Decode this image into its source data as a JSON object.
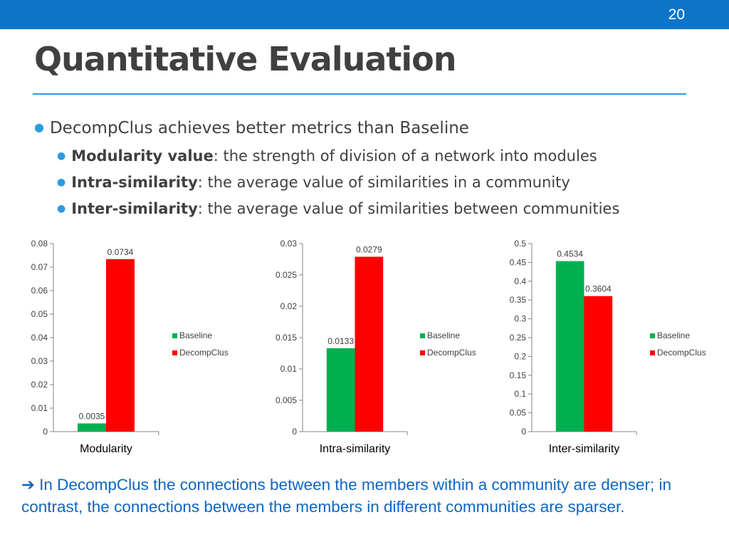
{
  "slide_number": "20",
  "title": "Quantitative Evaluation",
  "bullets": {
    "main": "DecompClus achieves better metrics than Baseline",
    "sub": [
      {
        "term": "Modularity value",
        "text": ": the strength of division of a network into modules"
      },
      {
        "term": "Intra-similarity",
        "text": ": the average value of similarities in a community"
      },
      {
        "term": "Inter-similarity",
        "text": ": the average value of similarities between communities"
      }
    ]
  },
  "colors": {
    "baseline": "#00b050",
    "decompclus": "#ff0000",
    "accent": "#2e9ae0",
    "header": "#0e74c8"
  },
  "chart_data": [
    {
      "type": "bar",
      "categories": [
        "Modularity"
      ],
      "series": [
        {
          "name": "Baseline",
          "values": [
            0.0035
          ]
        },
        {
          "name": "DecompClus",
          "values": [
            0.0734
          ]
        }
      ],
      "data_labels": [
        "0.0035",
        "0.0734"
      ],
      "yticks": [
        "0",
        "0.01",
        "0.02",
        "0.03",
        "0.04",
        "0.05",
        "0.06",
        "0.07",
        "0.08"
      ],
      "ylim": [
        0,
        0.08
      ],
      "legend": "right",
      "grid": false
    },
    {
      "type": "bar",
      "categories": [
        "Intra-similarity"
      ],
      "series": [
        {
          "name": "Baseline",
          "values": [
            0.0133
          ]
        },
        {
          "name": "DecompClus",
          "values": [
            0.0279
          ]
        }
      ],
      "data_labels": [
        "0.0133",
        "0.0279"
      ],
      "yticks": [
        "0",
        "0.005",
        "0.01",
        "0.015",
        "0.02",
        "0.025",
        "0.03"
      ],
      "ylim": [
        0,
        0.03
      ],
      "legend": "right",
      "grid": false
    },
    {
      "type": "bar",
      "categories": [
        "Inter-similarity"
      ],
      "series": [
        {
          "name": "Baseline",
          "values": [
            0.4534
          ]
        },
        {
          "name": "DecompClus",
          "values": [
            0.3604
          ]
        }
      ],
      "data_labels": [
        "0.4534",
        "0.3604"
      ],
      "yticks": [
        "0",
        "0.05",
        "0.1",
        "0.15",
        "0.2",
        "0.25",
        "0.3",
        "0.35",
        "0.4",
        "0.45",
        "0.5"
      ],
      "ylim": [
        0,
        0.5
      ],
      "legend": "right",
      "grid": false
    }
  ],
  "conclusion": {
    "arrow": "➔",
    "text": "In DecompClus the connections between the members within a community are denser; in contrast, the connections between the members in different communities are sparser."
  }
}
